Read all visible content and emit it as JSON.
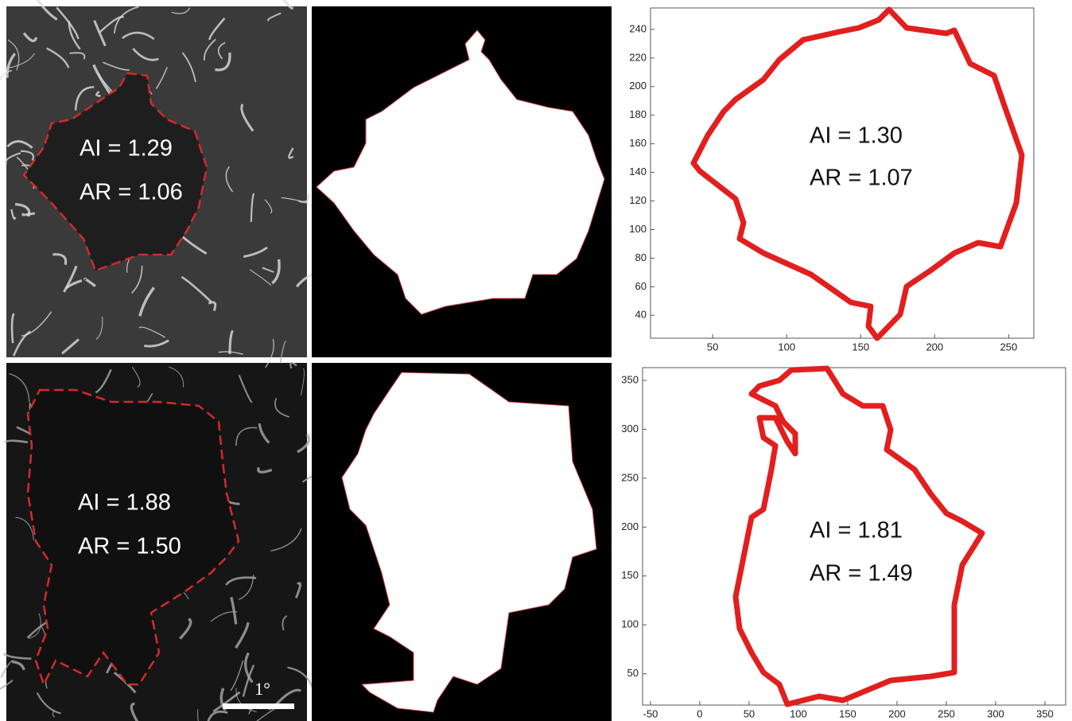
{
  "panels": [
    {
      "ai_label": "AI = 1.29",
      "ar_label": "AR = 1.06"
    },
    {
      "ai_label": "AI = 1.88",
      "ar_label": "AR = 1.50",
      "scale_bar": "1°"
    }
  ],
  "plots": [
    {
      "ai_label": "AI = 1.30",
      "ar_label": "AR = 1.07",
      "xlim": [
        8,
        267
      ],
      "ylim": [
        24,
        255
      ],
      "xticks": [
        50,
        100,
        150,
        200,
        250
      ],
      "yticks": [
        40,
        60,
        80,
        100,
        120,
        140,
        160,
        180,
        200,
        220,
        240
      ]
    },
    {
      "ai_label": "AI = 1.81",
      "ar_label": "AR = 1.49",
      "xlim": [
        -58,
        371
      ],
      "ylim": [
        18,
        363
      ],
      "xticks": [
        -50,
        0,
        50,
        100,
        150,
        200,
        250,
        300,
        350
      ],
      "yticks": [
        50,
        100,
        150,
        200,
        250,
        300,
        350
      ]
    }
  ]
}
